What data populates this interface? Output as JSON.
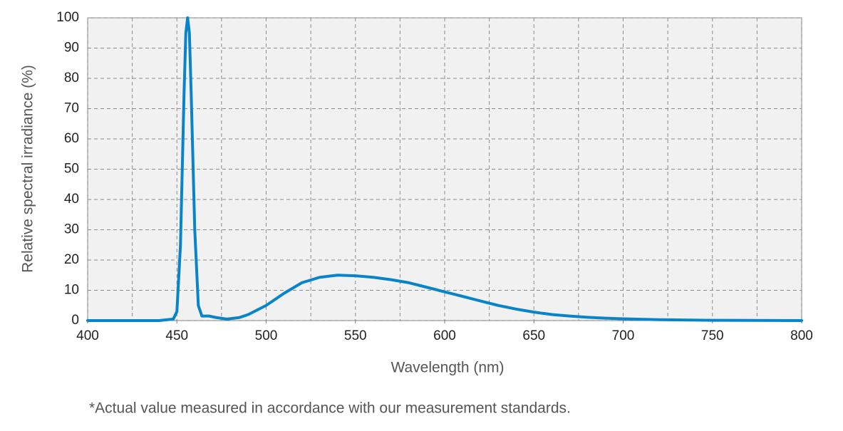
{
  "chart_data": {
    "type": "line",
    "y_axis_label": "Relative spectral irradiance (%)",
    "x_axis_label": "Wavelength (nm)",
    "footnote": "*Actual value measured in accordance with our measurement standards.",
    "x": [
      400,
      440,
      448,
      450,
      452,
      454,
      455,
      456,
      457,
      458,
      460,
      462,
      464,
      468,
      472,
      478,
      485,
      490,
      500,
      510,
      520,
      530,
      540,
      550,
      560,
      570,
      580,
      590,
      600,
      610,
      620,
      630,
      640,
      650,
      660,
      670,
      680,
      690,
      700,
      720,
      750,
      800
    ],
    "values": [
      0,
      0,
      0.5,
      3,
      25,
      75,
      95,
      100,
      95,
      75,
      30,
      5,
      1.5,
      1.5,
      1,
      0.5,
      1,
      2,
      5,
      9,
      12.5,
      14.3,
      15,
      14.8,
      14.3,
      13.5,
      12.5,
      11,
      9.5,
      8,
      6.5,
      5,
      3.8,
      2.8,
      2,
      1.5,
      1.1,
      0.8,
      0.6,
      0.3,
      0.1,
      0
    ],
    "color": "#0a84c8",
    "xlim": [
      400,
      800
    ],
    "ylim": [
      0,
      100
    ],
    "xticks": [
      400,
      450,
      500,
      550,
      600,
      650,
      700,
      750,
      800
    ],
    "yticks": [
      0,
      10,
      20,
      30,
      40,
      50,
      60,
      70,
      80,
      90,
      100
    ],
    "x_grid": [
      400,
      425,
      450,
      475,
      500,
      525,
      550,
      575,
      600,
      625,
      650,
      675,
      700,
      725,
      750,
      775,
      800
    ],
    "grid": true
  }
}
